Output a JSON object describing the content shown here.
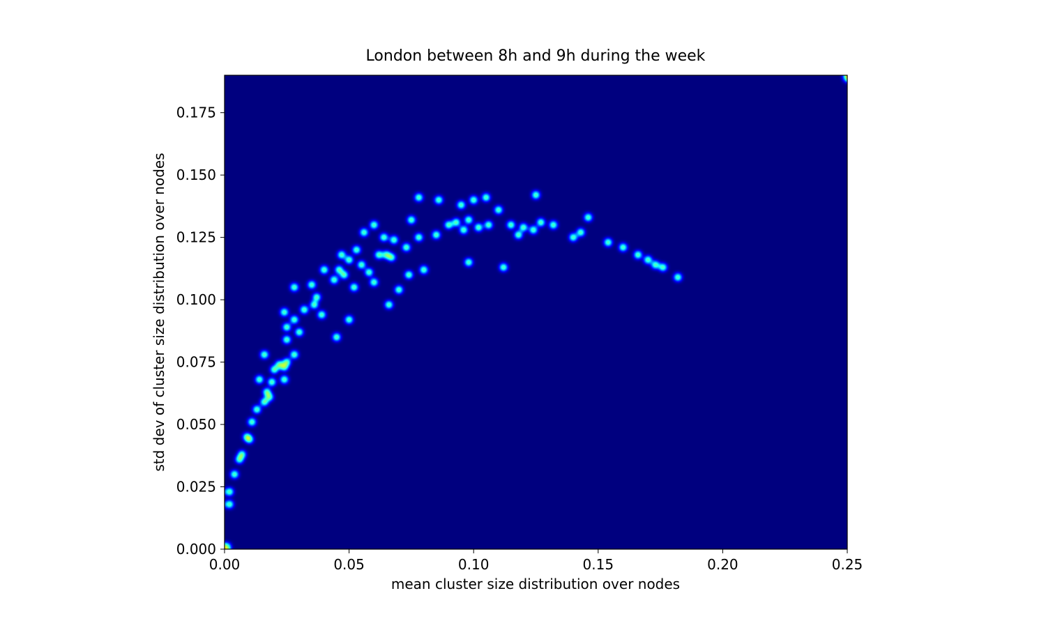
{
  "chart_data": {
    "type": "density",
    "title": "London between 8h and 9h during the week",
    "xlabel": "mean cluster size distribution over nodes",
    "ylabel": "std dev of cluster size distribution over nodes",
    "colormap": "jet",
    "xlim": [
      0,
      0.25
    ],
    "ylim": [
      0,
      0.19
    ],
    "xticks": [
      {
        "value": 0,
        "label": "0.00"
      },
      {
        "value": 0.05,
        "label": "0.05"
      },
      {
        "value": 0.1,
        "label": "0.10"
      },
      {
        "value": 0.15,
        "label": "0.15"
      },
      {
        "value": 0.2,
        "label": "0.20"
      },
      {
        "value": 0.25,
        "label": "0.25"
      }
    ],
    "yticks": [
      {
        "value": 0,
        "label": "0.000"
      },
      {
        "value": 0.025,
        "label": "0.025"
      },
      {
        "value": 0.05,
        "label": "0.050"
      },
      {
        "value": 0.075,
        "label": "0.075"
      },
      {
        "value": 0.1,
        "label": "0.100"
      },
      {
        "value": 0.125,
        "label": "0.125"
      },
      {
        "value": 0.15,
        "label": "0.150"
      },
      {
        "value": 0.175,
        "label": "0.175"
      }
    ],
    "x": [
      0.001,
      0.002,
      0.002,
      0.004,
      0.006,
      0.007,
      0.009,
      0.01,
      0.011,
      0.013,
      0.016,
      0.017,
      0.018,
      0.019,
      0.022,
      0.024,
      0.025,
      0.02,
      0.016,
      0.014,
      0.024,
      0.028,
      0.025,
      0.025,
      0.028,
      0.03,
      0.024,
      0.032,
      0.036,
      0.037,
      0.039,
      0.035,
      0.028,
      0.04,
      0.044,
      0.046,
      0.048,
      0.047,
      0.05,
      0.052,
      0.053,
      0.055,
      0.058,
      0.06,
      0.062,
      0.065,
      0.067,
      0.056,
      0.06,
      0.064,
      0.068,
      0.073,
      0.078,
      0.075,
      0.074,
      0.08,
      0.085,
      0.09,
      0.093,
      0.096,
      0.098,
      0.102,
      0.106,
      0.095,
      0.1,
      0.105,
      0.11,
      0.115,
      0.12,
      0.124,
      0.127,
      0.132,
      0.125,
      0.14,
      0.143,
      0.146,
      0.154,
      0.16,
      0.166,
      0.17,
      0.173,
      0.176,
      0.182,
      0.078,
      0.086,
      0.05,
      0.045,
      0.066,
      0.07,
      0.118,
      0.112,
      0.098,
      0.25
    ],
    "y": [
      0.001,
      0.018,
      0.023,
      0.03,
      0.036,
      0.038,
      0.045,
      0.044,
      0.051,
      0.056,
      0.059,
      0.063,
      0.061,
      0.067,
      0.074,
      0.073,
      0.075,
      0.072,
      0.078,
      0.068,
      0.068,
      0.078,
      0.084,
      0.089,
      0.092,
      0.087,
      0.095,
      0.096,
      0.098,
      0.101,
      0.094,
      0.106,
      0.105,
      0.112,
      0.108,
      0.112,
      0.11,
      0.118,
      0.116,
      0.105,
      0.12,
      0.114,
      0.111,
      0.107,
      0.118,
      0.118,
      0.117,
      0.127,
      0.13,
      0.125,
      0.124,
      0.121,
      0.125,
      0.132,
      0.11,
      0.112,
      0.126,
      0.13,
      0.131,
      0.128,
      0.132,
      0.129,
      0.13,
      0.138,
      0.14,
      0.141,
      0.136,
      0.13,
      0.129,
      0.128,
      0.131,
      0.13,
      0.142,
      0.125,
      0.127,
      0.133,
      0.123,
      0.121,
      0.118,
      0.116,
      0.114,
      0.113,
      0.109,
      0.141,
      0.14,
      0.092,
      0.085,
      0.098,
      0.104,
      0.126,
      0.113,
      0.115,
      0.189
    ]
  }
}
